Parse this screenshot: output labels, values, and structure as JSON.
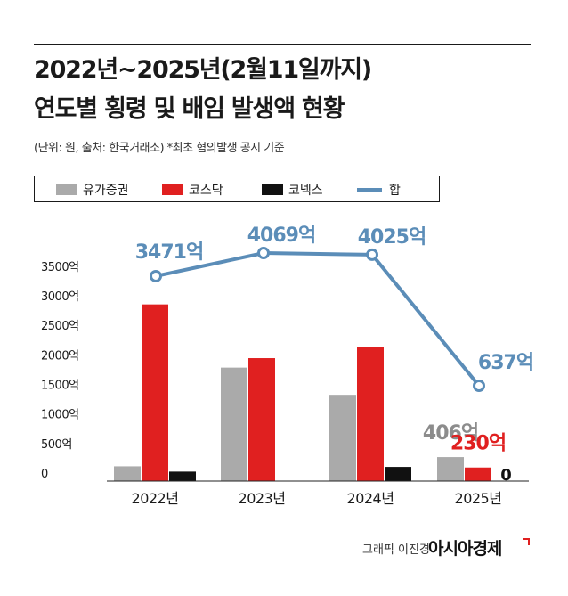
{
  "title_line1": "2022년~2025년(2월11일까지)",
  "title_line2": "연도별 횡령 및 배임 발생액 현황",
  "note": "(단위: 원, 출처: 한국거래소) *최초 혐의발생 공시 기준",
  "credit": "그래픽 이진경",
  "brand": "아시아경제",
  "colors": {
    "gray": "#aaaaaa",
    "red": "#e02020",
    "black": "#111111",
    "line": "#5b8db8",
    "rule": "#1a1a1a"
  },
  "legend": [
    {
      "label": "유가증권",
      "color": "#aaaaaa",
      "kind": "box"
    },
    {
      "label": "코스닥",
      "color": "#e02020",
      "kind": "box"
    },
    {
      "label": "코넥스",
      "color": "#111111",
      "kind": "box"
    },
    {
      "label": "합",
      "color": "#5b8db8",
      "kind": "line"
    }
  ],
  "chart_data": {
    "type": "bar",
    "categories": [
      "2022년",
      "2023년",
      "2024년",
      "2025년"
    ],
    "series": [
      {
        "name": "유가증권",
        "values": [
          250,
          1920,
          1460,
          406
        ]
      },
      {
        "name": "코스닥",
        "values": [
          2990,
          2080,
          2270,
          230
        ]
      },
      {
        "name": "코넥스",
        "values": [
          160,
          0,
          240,
          0
        ]
      }
    ],
    "line_series": {
      "name": "합",
      "values": [
        3471,
        4069,
        4025,
        637
      ],
      "labels": [
        "3471억",
        "4069억",
        "4025억",
        "637억"
      ]
    },
    "yticks": [
      "0",
      "500억",
      "1000억",
      "1500억",
      "2000억",
      "2500억",
      "3000억",
      "3500억"
    ],
    "ylim": [
      0,
      3500
    ],
    "bar_labels": [
      {
        "category": 3,
        "series": 0,
        "text": "406억"
      },
      {
        "category": 3,
        "series": 1,
        "text": "230억"
      },
      {
        "category": 3,
        "series": 2,
        "text": "0"
      }
    ],
    "unit": "억",
    "grid": false
  }
}
